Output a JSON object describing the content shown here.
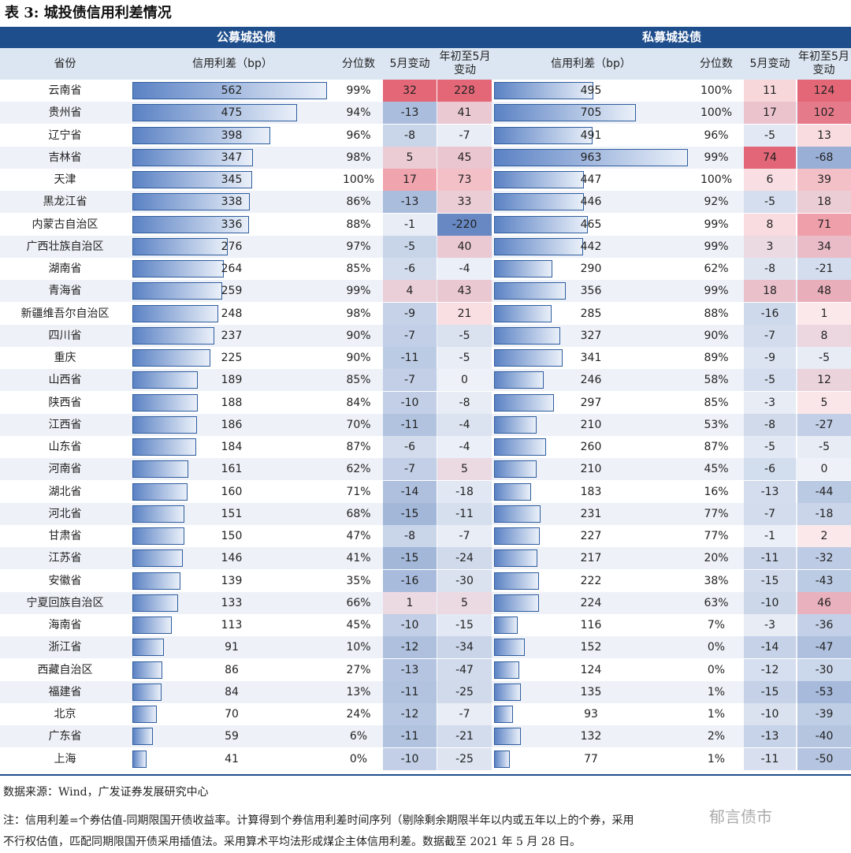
{
  "title": "表 3:  城投债信用利差情况",
  "groups": {
    "public": "公募城投债",
    "private": "私募城投债"
  },
  "headers": {
    "province": "省份",
    "pub_spread": "信用利差（bp）",
    "pub_pct": "分位数",
    "pub_may": "5月变动",
    "pub_ytd": "年初至5月变动",
    "pri_spread": "信用利差（bp）",
    "pri_pct": "分位数",
    "pri_may": "5月变动",
    "pri_ytd": "年初至5月变动"
  },
  "rows": [
    {
      "province": "云南省",
      "pub_spread": 562,
      "pub_pct": "99%",
      "pub_may": 32,
      "pub_ytd": 228,
      "pri_spread": 495,
      "pri_pct": "100%",
      "pri_may": 11,
      "pri_ytd": 124
    },
    {
      "province": "贵州省",
      "pub_spread": 475,
      "pub_pct": "94%",
      "pub_may": -13,
      "pub_ytd": 41,
      "pri_spread": 705,
      "pri_pct": "100%",
      "pri_may": 17,
      "pri_ytd": 102
    },
    {
      "province": "辽宁省",
      "pub_spread": 398,
      "pub_pct": "96%",
      "pub_may": -8,
      "pub_ytd": -7,
      "pri_spread": 491,
      "pri_pct": "96%",
      "pri_may": -5,
      "pri_ytd": 13
    },
    {
      "province": "吉林省",
      "pub_spread": 347,
      "pub_pct": "98%",
      "pub_may": 5,
      "pub_ytd": 45,
      "pri_spread": 963,
      "pri_pct": "99%",
      "pri_may": 74,
      "pri_ytd": -68
    },
    {
      "province": "天津",
      "pub_spread": 345,
      "pub_pct": "100%",
      "pub_may": 17,
      "pub_ytd": 73,
      "pri_spread": 447,
      "pri_pct": "100%",
      "pri_may": 6,
      "pri_ytd": 39
    },
    {
      "province": "黑龙江省",
      "pub_spread": 338,
      "pub_pct": "86%",
      "pub_may": -13,
      "pub_ytd": 33,
      "pri_spread": 446,
      "pri_pct": "92%",
      "pri_may": -5,
      "pri_ytd": 18
    },
    {
      "province": "内蒙古自治区",
      "pub_spread": 336,
      "pub_pct": "88%",
      "pub_may": -1,
      "pub_ytd": -220,
      "pri_spread": 465,
      "pri_pct": "99%",
      "pri_may": 8,
      "pri_ytd": 71
    },
    {
      "province": "广西壮族自治区",
      "pub_spread": 276,
      "pub_pct": "97%",
      "pub_may": -5,
      "pub_ytd": 40,
      "pri_spread": 442,
      "pri_pct": "99%",
      "pri_may": 3,
      "pri_ytd": 34
    },
    {
      "province": "湖南省",
      "pub_spread": 264,
      "pub_pct": "85%",
      "pub_may": -6,
      "pub_ytd": -4,
      "pri_spread": 290,
      "pri_pct": "62%",
      "pri_may": -8,
      "pri_ytd": -21
    },
    {
      "province": "青海省",
      "pub_spread": 259,
      "pub_pct": "99%",
      "pub_may": 4,
      "pub_ytd": 43,
      "pri_spread": 356,
      "pri_pct": "99%",
      "pri_may": 18,
      "pri_ytd": 48
    },
    {
      "province": "新疆维吾尔自治区",
      "pub_spread": 248,
      "pub_pct": "98%",
      "pub_may": -9,
      "pub_ytd": 21,
      "pri_spread": 285,
      "pri_pct": "88%",
      "pri_may": -16,
      "pri_ytd": 1
    },
    {
      "province": "四川省",
      "pub_spread": 237,
      "pub_pct": "90%",
      "pub_may": -7,
      "pub_ytd": -5,
      "pri_spread": 327,
      "pri_pct": "90%",
      "pri_may": -7,
      "pri_ytd": 8
    },
    {
      "province": "重庆",
      "pub_spread": 225,
      "pub_pct": "90%",
      "pub_may": -11,
      "pub_ytd": -5,
      "pri_spread": 341,
      "pri_pct": "89%",
      "pri_may": -9,
      "pri_ytd": -5
    },
    {
      "province": "山西省",
      "pub_spread": 189,
      "pub_pct": "85%",
      "pub_may": -7,
      "pub_ytd": 0,
      "pri_spread": 246,
      "pri_pct": "58%",
      "pri_may": -5,
      "pri_ytd": 12
    },
    {
      "province": "陕西省",
      "pub_spread": 188,
      "pub_pct": "84%",
      "pub_may": -10,
      "pub_ytd": -8,
      "pri_spread": 297,
      "pri_pct": "85%",
      "pri_may": -3,
      "pri_ytd": 5
    },
    {
      "province": "江西省",
      "pub_spread": 186,
      "pub_pct": "70%",
      "pub_may": -11,
      "pub_ytd": -4,
      "pri_spread": 210,
      "pri_pct": "53%",
      "pri_may": -8,
      "pri_ytd": -27
    },
    {
      "province": "山东省",
      "pub_spread": 184,
      "pub_pct": "87%",
      "pub_may": -6,
      "pub_ytd": -4,
      "pri_spread": 260,
      "pri_pct": "87%",
      "pri_may": -5,
      "pri_ytd": -5
    },
    {
      "province": "河南省",
      "pub_spread": 161,
      "pub_pct": "62%",
      "pub_may": -7,
      "pub_ytd": 5,
      "pri_spread": 210,
      "pri_pct": "45%",
      "pri_may": -6,
      "pri_ytd": 0
    },
    {
      "province": "湖北省",
      "pub_spread": 160,
      "pub_pct": "71%",
      "pub_may": -14,
      "pub_ytd": -18,
      "pri_spread": 183,
      "pri_pct": "16%",
      "pri_may": -13,
      "pri_ytd": -44
    },
    {
      "province": "河北省",
      "pub_spread": 151,
      "pub_pct": "68%",
      "pub_may": -15,
      "pub_ytd": -11,
      "pri_spread": 231,
      "pri_pct": "77%",
      "pri_may": -7,
      "pri_ytd": -18
    },
    {
      "province": "甘肃省",
      "pub_spread": 150,
      "pub_pct": "47%",
      "pub_may": -8,
      "pub_ytd": -7,
      "pri_spread": 227,
      "pri_pct": "77%",
      "pri_may": -1,
      "pri_ytd": 2
    },
    {
      "province": "江苏省",
      "pub_spread": 146,
      "pub_pct": "41%",
      "pub_may": -15,
      "pub_ytd": -24,
      "pri_spread": 217,
      "pri_pct": "20%",
      "pri_may": -11,
      "pri_ytd": -32
    },
    {
      "province": "安徽省",
      "pub_spread": 139,
      "pub_pct": "35%",
      "pub_may": -16,
      "pub_ytd": -30,
      "pri_spread": 222,
      "pri_pct": "38%",
      "pri_may": -15,
      "pri_ytd": -43
    },
    {
      "province": "宁夏回族自治区",
      "pub_spread": 133,
      "pub_pct": "66%",
      "pub_may": 1,
      "pub_ytd": 5,
      "pri_spread": 224,
      "pri_pct": "63%",
      "pri_may": -10,
      "pri_ytd": 46
    },
    {
      "province": "海南省",
      "pub_spread": 113,
      "pub_pct": "45%",
      "pub_may": -10,
      "pub_ytd": -15,
      "pri_spread": 116,
      "pri_pct": "7%",
      "pri_may": -3,
      "pri_ytd": -36
    },
    {
      "province": "浙江省",
      "pub_spread": 91,
      "pub_pct": "10%",
      "pub_may": -12,
      "pub_ytd": -34,
      "pri_spread": 152,
      "pri_pct": "0%",
      "pri_may": -14,
      "pri_ytd": -47
    },
    {
      "province": "西藏自治区",
      "pub_spread": 86,
      "pub_pct": "27%",
      "pub_may": -13,
      "pub_ytd": -47,
      "pri_spread": 124,
      "pri_pct": "0%",
      "pri_may": -12,
      "pri_ytd": -30
    },
    {
      "province": "福建省",
      "pub_spread": 84,
      "pub_pct": "13%",
      "pub_may": -11,
      "pub_ytd": -25,
      "pri_spread": 135,
      "pri_pct": "1%",
      "pri_may": -15,
      "pri_ytd": -53
    },
    {
      "province": "北京",
      "pub_spread": 70,
      "pub_pct": "24%",
      "pub_may": -12,
      "pub_ytd": -7,
      "pri_spread": 93,
      "pri_pct": "1%",
      "pri_may": -10,
      "pri_ytd": -39
    },
    {
      "province": "广东省",
      "pub_spread": 59,
      "pub_pct": "6%",
      "pub_may": -11,
      "pub_ytd": -21,
      "pri_spread": 132,
      "pri_pct": "2%",
      "pri_may": -13,
      "pri_ytd": -40
    },
    {
      "province": "上海",
      "pub_spread": 41,
      "pub_pct": "0%",
      "pub_may": -10,
      "pub_ytd": -25,
      "pri_spread": 77,
      "pri_pct": "1%",
      "pri_may": -11,
      "pri_ytd": -50
    }
  ],
  "colors": {
    "header_blue": "#1F4E8C",
    "subheader": "#DCE6F2",
    "positive": "#E06070",
    "negative": "#4A73B8"
  },
  "source": "数据来源：Wind，广发证券发展研究中心",
  "note_line1": "注：信用利差=个券估值-同期限国开债收益率。计算得到个券信用利差时间序列（剔除剩余期限半年以内或五年以上的个券，采用",
  "note_line2": "不行权估值，匹配同期限国开债采用插值法。采用算术平均法形成煤企主体信用利差。数据截至 2021 年 5 月 28 日。",
  "watermark": "郁言债市"
}
